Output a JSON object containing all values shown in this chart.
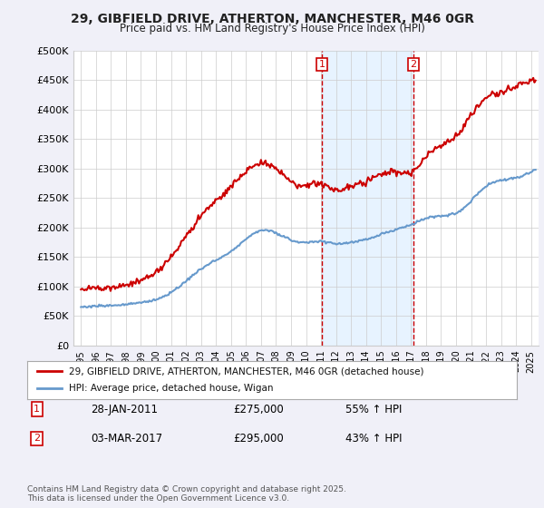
{
  "title1": "29, GIBFIELD DRIVE, ATHERTON, MANCHESTER, M46 0GR",
  "title2": "Price paid vs. HM Land Registry's House Price Index (HPI)",
  "ylabel": "",
  "xlabel": "",
  "background_color": "#f0f0f8",
  "plot_bg_color": "#ffffff",
  "red_line_label": "29, GIBFIELD DRIVE, ATHERTON, MANCHESTER, M46 0GR (detached house)",
  "blue_line_label": "HPI: Average price, detached house, Wigan",
  "marker1_date_x": 2011.07,
  "marker1_label": "1",
  "marker2_date_x": 2017.17,
  "marker2_label": "2",
  "annotation1_date": "28-JAN-2011",
  "annotation1_price": "£275,000",
  "annotation1_hpi": "55% ↑ HPI",
  "annotation2_date": "03-MAR-2017",
  "annotation2_price": "£295,000",
  "annotation2_hpi": "43% ↑ HPI",
  "footer": "Contains HM Land Registry data © Crown copyright and database right 2025.\nThis data is licensed under the Open Government Licence v3.0.",
  "ylim": [
    0,
    500000
  ],
  "xlim": [
    1994.5,
    2025.5
  ],
  "yticks": [
    0,
    50000,
    100000,
    150000,
    200000,
    250000,
    300000,
    350000,
    400000,
    450000,
    500000
  ],
  "ytick_labels": [
    "£0",
    "£50K",
    "£100K",
    "£150K",
    "£200K",
    "£250K",
    "£300K",
    "£350K",
    "£400K",
    "£450K",
    "£500K"
  ],
  "xticks": [
    1995,
    1996,
    1997,
    1998,
    1999,
    2000,
    2001,
    2002,
    2003,
    2004,
    2005,
    2006,
    2007,
    2008,
    2009,
    2010,
    2011,
    2012,
    2013,
    2014,
    2015,
    2016,
    2017,
    2018,
    2019,
    2020,
    2021,
    2022,
    2023,
    2024,
    2025
  ],
  "red_color": "#cc0000",
  "blue_color": "#6699cc",
  "shade_color": "#ddeeff",
  "marker_box_color": "#cc0000"
}
